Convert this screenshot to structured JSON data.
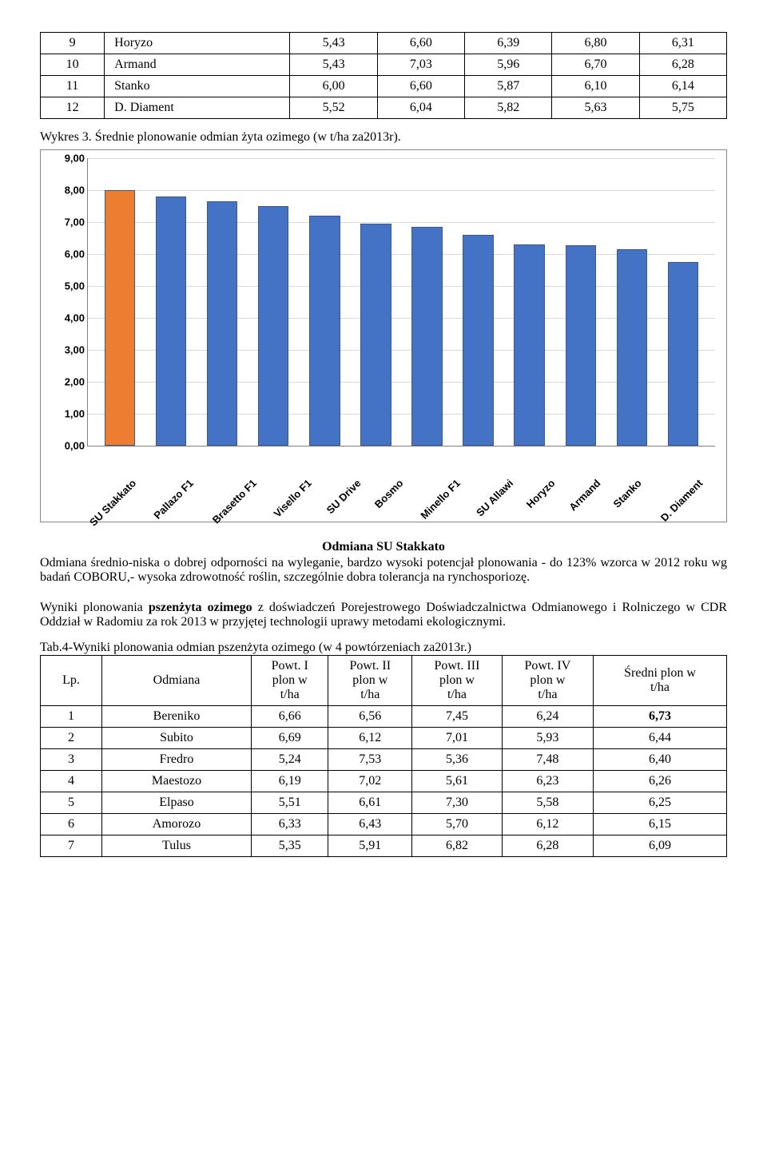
{
  "table1": {
    "rows": [
      {
        "n": "9",
        "name": "Horyzo",
        "c1": "5,43",
        "c2": "6,60",
        "c3": "6,39",
        "c4": "6,80",
        "c5": "6,31"
      },
      {
        "n": "10",
        "name": "Armand",
        "c1": "5,43",
        "c2": "7,03",
        "c3": "5,96",
        "c4": "6,70",
        "c5": "6,28"
      },
      {
        "n": "11",
        "name": "Stanko",
        "c1": "6,00",
        "c2": "6,60",
        "c3": "5,87",
        "c4": "6,10",
        "c5": "6,14"
      },
      {
        "n": "12",
        "name": "D. Diament",
        "c1": "5,52",
        "c2": "6,04",
        "c3": "5,82",
        "c4": "5,63",
        "c5": "5,75"
      }
    ]
  },
  "wykres_caption": "Wykres 3. Średnie plonowanie odmian żyta ozimego (w t/ha za2013r).",
  "chart": {
    "type": "bar",
    "ymax": 9.0,
    "ytick_step": 1.0,
    "grid_color": "#d9d9d9",
    "axis_color": "#7f7f7f",
    "bar_border": "#3a5a87",
    "categories": [
      "SU Stakkato",
      "Pallazo F1",
      "Brasetto F1",
      "Visello F1",
      "SU Drive",
      "Bosmo",
      "Minello F1",
      "SU Allawi",
      "Horyzo",
      "Armand",
      "Stanko",
      "D. Diament"
    ],
    "values": [
      8.0,
      7.8,
      7.65,
      7.5,
      7.2,
      6.95,
      6.85,
      6.6,
      6.31,
      6.28,
      6.14,
      5.75
    ],
    "colors": [
      "#ed7d31",
      "#4472c4",
      "#4472c4",
      "#4472c4",
      "#4472c4",
      "#4472c4",
      "#4472c4",
      "#4472c4",
      "#4472c4",
      "#4472c4",
      "#4472c4",
      "#4472c4"
    ],
    "yticks": [
      "0,00",
      "1,00",
      "2,00",
      "3,00",
      "4,00",
      "5,00",
      "6,00",
      "7,00",
      "8,00",
      "9,00"
    ]
  },
  "stakkato_title": "Odmiana SU Stakkato",
  "stakkato_text": "Odmiana średnio-niska o dobrej odporności na wyleganie, bardzo wysoki potencjał plonowania - do 123% wzorca w 2012 roku wg badań COBORU,- wysoka zdrowotność roślin, szczególnie dobra tolerancja na rynchosporiozę.",
  "pszenzyto_text1": "Wyniki plonowania ",
  "pszenzyto_bold": "pszenżyta ozimego",
  "pszenzyto_text2": " z doświadczeń Porejestrowego Doświadczalnictwa Odmianowego i Rolniczego w CDR Oddział w Radomiu za rok 2013 w przyjętej technologii uprawy metodami ekologicznymi.",
  "tab4_caption": "Tab.4-Wyniki plonowania odmian pszenżyta ozimego (w 4 powtórzeniach za2013r.)",
  "table2": {
    "headers": {
      "lp": "Lp.",
      "odm": "Odmiana",
      "p1a": "Powt. I",
      "p1b": "plon w",
      "p1c": "t/ha",
      "p2a": "Powt. II",
      "p2b": "plon w",
      "p2c": "t/ha",
      "p3a": "Powt. III",
      "p3b": "plon w",
      "p3c": "t/ha",
      "p4a": "Powt. IV",
      "p4b": "plon w",
      "p4c": "t/ha",
      "avg1": "Średni plon w",
      "avg2": "t/ha"
    },
    "rows": [
      {
        "n": "1",
        "name": "Bereniko",
        "c1": "6,66",
        "c2": "6,56",
        "c3": "7,45",
        "c4": "6,24",
        "avg": "6,73",
        "bold": true
      },
      {
        "n": "2",
        "name": "Subito",
        "c1": "6,69",
        "c2": "6,12",
        "c3": "7,01",
        "c4": "5,93",
        "avg": "6,44",
        "bold": false
      },
      {
        "n": "3",
        "name": "Fredro",
        "c1": "5,24",
        "c2": "7,53",
        "c3": "5,36",
        "c4": "7,48",
        "avg": "6,40",
        "bold": false
      },
      {
        "n": "4",
        "name": "Maestozo",
        "c1": "6,19",
        "c2": "7,02",
        "c3": "5,61",
        "c4": "6,23",
        "avg": "6,26",
        "bold": false
      },
      {
        "n": "5",
        "name": "Elpaso",
        "c1": "5,51",
        "c2": "6,61",
        "c3": "7,30",
        "c4": "5,58",
        "avg": "6,25",
        "bold": false
      },
      {
        "n": "6",
        "name": "Amorozo",
        "c1": "6,33",
        "c2": "6,43",
        "c3": "5,70",
        "c4": "6,12",
        "avg": "6,15",
        "bold": false
      },
      {
        "n": "7",
        "name": "Tulus",
        "c1": "5,35",
        "c2": "5,91",
        "c3": "6,82",
        "c4": "6,28",
        "avg": "6,09",
        "bold": false
      }
    ]
  }
}
